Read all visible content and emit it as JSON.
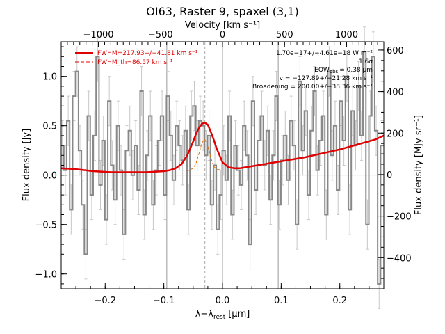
{
  "chart_data": {
    "type": "line",
    "title": "OI63, Raster 9, spaxel (3,1)",
    "xlabel": "λ−λ",
    "xlabel_sub": "rest",
    "xlabel_unit": "[μm]",
    "ylabel": "Flux density [Jy]",
    "ylabel_right": "Flux density [MJy sr⁻¹]",
    "xlabel_top": "Velocity [km s⁻¹]",
    "xlim": [
      -0.275,
      0.275
    ],
    "ylim": [
      -1.15,
      1.35
    ],
    "ylim_right": [
      -550,
      640
    ],
    "top_xlim": [
      -1300,
      1300
    ],
    "x_ticks": [
      -0.2,
      -0.1,
      0.0,
      0.1,
      0.2
    ],
    "x_tick_labels": [
      "−0.2",
      "−0.1",
      "0.0",
      "0.1",
      "0.2"
    ],
    "y_ticks": [
      -1.0,
      -0.5,
      0.0,
      0.5,
      1.0
    ],
    "y_tick_labels": [
      "−1.0",
      "−0.5",
      "0.0",
      "0.5",
      "1.0"
    ],
    "y_right_ticks": [
      -400,
      -200,
      0,
      200,
      400,
      600
    ],
    "y_right_tick_labels": [
      "−400",
      "−200",
      "0",
      "200",
      "400",
      "600"
    ],
    "top_ticks": [
      -1000,
      -500,
      0,
      500,
      1000
    ],
    "top_tick_labels": [
      "−1000",
      "−500",
      "0",
      "500",
      "1000"
    ],
    "vlines_solid": [
      -0.095,
      0.0,
      0.095
    ],
    "vline_dashed": -0.03,
    "legend": {
      "placement": "top-left",
      "entries": [
        {
          "label": "FWHM=217.93+/−41.81 km s⁻¹",
          "style": "solid",
          "color": "#e00000"
        },
        {
          "label": "FWHM_th=86.57 km s⁻¹",
          "style": "dashed",
          "color": "#e00000"
        }
      ]
    },
    "annotations": [
      "1.70e−17+/−4.61e−18 W m⁻²",
      "1.6σ",
      "EQW",
      "obs",
      "= 0.38 μm",
      "v = −127.89+/−21.28 km s⁻¹",
      "Broadening = 200.00+/−38.36 km s⁻¹"
    ],
    "series": [
      {
        "style": "step",
        "color": "#888888",
        "x": [
          -0.273,
          -0.268,
          -0.263,
          -0.258,
          -0.253,
          -0.248,
          -0.243,
          -0.238,
          -0.233,
          -0.228,
          -0.223,
          -0.218,
          -0.213,
          -0.208,
          -0.203,
          -0.198,
          -0.193,
          -0.188,
          -0.183,
          -0.178,
          -0.173,
          -0.168,
          -0.163,
          -0.158,
          -0.153,
          -0.148,
          -0.143,
          -0.138,
          -0.133,
          -0.128,
          -0.123,
          -0.118,
          -0.113,
          -0.108,
          -0.103,
          -0.098,
          -0.093,
          -0.088,
          -0.083,
          -0.078,
          -0.073,
          -0.068,
          -0.063,
          -0.058,
          -0.053,
          -0.048,
          -0.043,
          -0.038,
          -0.033,
          -0.028,
          -0.023,
          -0.018,
          -0.013,
          -0.008,
          -0.003,
          0.002,
          0.007,
          0.012,
          0.017,
          0.022,
          0.027,
          0.032,
          0.037,
          0.042,
          0.047,
          0.052,
          0.057,
          0.062,
          0.067,
          0.072,
          0.077,
          0.082,
          0.087,
          0.092,
          0.097,
          0.102,
          0.107,
          0.112,
          0.117,
          0.122,
          0.127,
          0.132,
          0.137,
          0.142,
          0.147,
          0.152,
          0.157,
          0.162,
          0.167,
          0.172,
          0.177,
          0.182,
          0.187,
          0.192,
          0.197,
          0.202,
          0.207,
          0.212,
          0.217,
          0.222,
          0.227,
          0.232,
          0.237,
          0.242,
          0.247,
          0.252,
          0.257,
          0.262,
          0.267,
          0.272
        ],
        "values": [
          0.3,
          0.05,
          0.55,
          -0.35,
          0.8,
          1.05,
          0.25,
          -0.3,
          -0.8,
          0.6,
          -0.2,
          0.4,
          1.2,
          -0.1,
          0.35,
          -0.45,
          0.75,
          0.1,
          -0.25,
          0.5,
          0.05,
          -0.6,
          0.25,
          0.45,
          0.0,
          0.3,
          -0.15,
          0.85,
          -0.4,
          0.2,
          0.6,
          -0.3,
          0.05,
          0.35,
          0.6,
          -0.2,
          0.8,
          0.4,
          -0.05,
          0.5,
          0.3,
          0.15,
          0.45,
          -0.35,
          0.6,
          0.7,
          0.3,
          0.55,
          0.5,
          0.2,
          0.4,
          -0.3,
          0.1,
          -0.55,
          -0.2,
          0.25,
          -0.05,
          0.6,
          -0.4,
          0.3,
          0.05,
          -0.1,
          0.5,
          0.2,
          -0.7,
          0.75,
          -0.15,
          0.35,
          0.6,
          0.1,
          0.45,
          -0.25,
          0.2,
          0.8,
          -0.3,
          0.15,
          0.4,
          -0.05,
          0.55,
          0.3,
          -0.5,
          0.95,
          0.25,
          0.65,
          -0.2,
          0.45,
          0.85,
          0.05,
          0.35,
          0.6,
          -0.4,
          1.05,
          0.2,
          0.5,
          -0.15,
          0.75,
          0.35,
          1.0,
          -0.35,
          0.65,
          0.3,
          0.9,
          0.4,
          1.25,
          -0.5,
          0.6,
          1.2,
          0.45,
          -1.1,
          0.3
        ],
        "errors": [
          0.25,
          0.25,
          0.25,
          0.25,
          0.25,
          0.25,
          0.25,
          0.25,
          0.25,
          0.25,
          0.25,
          0.25,
          0.25,
          0.25,
          0.25,
          0.25,
          0.25,
          0.25,
          0.25,
          0.25,
          0.25,
          0.25,
          0.25,
          0.25,
          0.25,
          0.25,
          0.25,
          0.25,
          0.25,
          0.25,
          0.25,
          0.25,
          0.25,
          0.25,
          0.25,
          0.25,
          0.25,
          0.25,
          0.25,
          0.25,
          0.25,
          0.25,
          0.25,
          0.25,
          0.25,
          0.25,
          0.25,
          0.25,
          0.25,
          0.25,
          0.25,
          0.25,
          0.25,
          0.25,
          0.25,
          0.25,
          0.25,
          0.25,
          0.25,
          0.25,
          0.25,
          0.25,
          0.25,
          0.25,
          0.25,
          0.25,
          0.25,
          0.25,
          0.25,
          0.25,
          0.25,
          0.25,
          0.25,
          0.25,
          0.25,
          0.25,
          0.25,
          0.25,
          0.25,
          0.25,
          0.25,
          0.25,
          0.25,
          0.25,
          0.25,
          0.25,
          0.25,
          0.25,
          0.25,
          0.25,
          0.25,
          0.25,
          0.25,
          0.25,
          0.25,
          0.25,
          0.25,
          0.25,
          0.25,
          0.25,
          0.25,
          0.25,
          0.25,
          0.25,
          0.25,
          0.25,
          0.25,
          0.25,
          0.25,
          0.25
        ]
      },
      {
        "style": "solid",
        "color": "#e00000",
        "x": [
          -0.275,
          -0.25,
          -0.22,
          -0.19,
          -0.16,
          -0.13,
          -0.1,
          -0.09,
          -0.08,
          -0.07,
          -0.06,
          -0.05,
          -0.045,
          -0.04,
          -0.035,
          -0.03,
          -0.025,
          -0.02,
          -0.015,
          -0.01,
          0.0,
          0.01,
          0.02,
          0.03,
          0.05,
          0.08,
          0.11,
          0.14,
          0.17,
          0.2,
          0.23,
          0.26,
          0.275
        ],
        "values": [
          0.07,
          0.06,
          0.04,
          0.03,
          0.03,
          0.03,
          0.04,
          0.05,
          0.07,
          0.11,
          0.2,
          0.34,
          0.42,
          0.48,
          0.52,
          0.53,
          0.51,
          0.44,
          0.36,
          0.27,
          0.13,
          0.08,
          0.07,
          0.07,
          0.09,
          0.12,
          0.15,
          0.18,
          0.22,
          0.26,
          0.31,
          0.36,
          0.4
        ]
      },
      {
        "style": "dashed",
        "color": "#e07000",
        "x": [
          -0.06,
          -0.05,
          -0.045,
          -0.04,
          -0.035,
          -0.03,
          -0.025,
          -0.02,
          -0.015,
          -0.01,
          0.0
        ],
        "values": [
          0.04,
          0.07,
          0.12,
          0.22,
          0.33,
          0.36,
          0.3,
          0.18,
          0.09,
          0.06,
          0.05
        ]
      }
    ]
  }
}
